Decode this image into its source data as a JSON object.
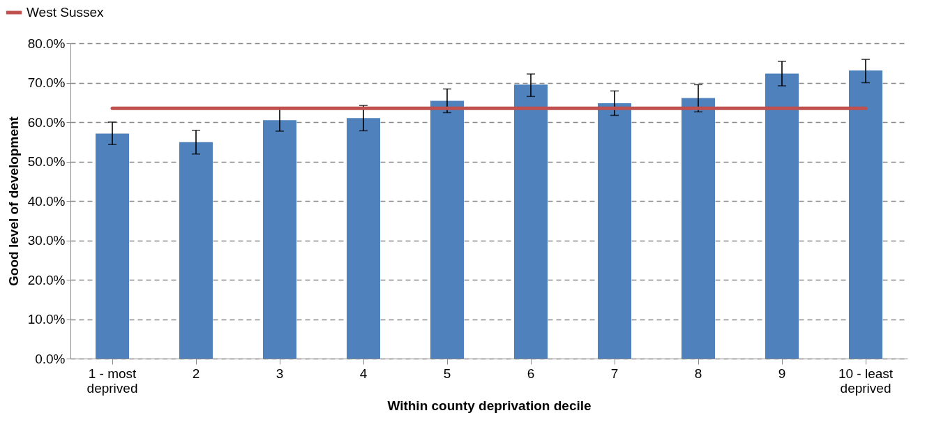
{
  "chart_data": {
    "type": "bar",
    "xlabel": "Within county deprivation decile",
    "ylabel": "Good level of development",
    "categories": [
      "1 - most deprived",
      "2",
      "3",
      "4",
      "5",
      "6",
      "7",
      "8",
      "9",
      "10 - least deprived"
    ],
    "series": [
      {
        "color": "#4f81bd",
        "values": [
          57.1,
          54.9,
          60.5,
          61.0,
          65.4,
          69.5,
          64.8,
          66.1,
          72.3,
          73.1
        ],
        "errors": [
          [
            54.3,
            60.0
          ],
          [
            51.9,
            57.9
          ],
          [
            57.7,
            63.4
          ],
          [
            57.8,
            64.2
          ],
          [
            62.4,
            68.4
          ],
          [
            66.5,
            72.2
          ],
          [
            61.7,
            67.9
          ],
          [
            62.6,
            69.5
          ],
          [
            69.2,
            75.4
          ],
          [
            70.0,
            75.9
          ]
        ]
      },
      {
        "type": "line",
        "name": "West Sussex",
        "color": "#c0504d",
        "values": [
          63.5,
          63.5,
          63.5,
          63.5,
          63.5,
          63.5,
          63.5,
          63.5,
          63.5,
          63.5
        ]
      }
    ],
    "ylim": [
      0,
      80
    ],
    "yticks": [
      {
        "value": 0,
        "label": "0.0%"
      },
      {
        "value": 10,
        "label": "10.0%"
      },
      {
        "value": 20,
        "label": "20.0%"
      },
      {
        "value": 30,
        "label": "30.0%"
      },
      {
        "value": 40,
        "label": "40.0%"
      },
      {
        "value": 50,
        "label": "50.0%"
      },
      {
        "value": 60,
        "label": "60.0%"
      },
      {
        "value": 70,
        "label": "70.0%"
      },
      {
        "value": 80,
        "label": "80.0%"
      }
    ],
    "grid": "y",
    "legend": "top left",
    "marker": "none",
    "line_style": "solid"
  }
}
